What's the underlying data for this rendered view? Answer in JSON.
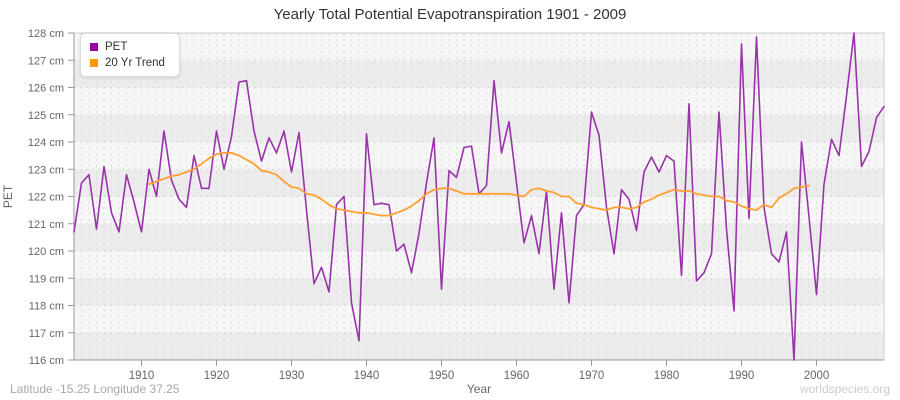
{
  "title": "Yearly Total Potential Evapotranspiration 1901 - 2009",
  "legend": [
    {
      "label": "PET",
      "color": "#9900aa"
    },
    {
      "label": "20 Yr Trend",
      "color": "#ff9900"
    }
  ],
  "y_axis": {
    "label": "PET",
    "unit": "cm",
    "min": 116,
    "max": 128,
    "tick_step": 1
  },
  "x_axis": {
    "label": "Year",
    "min": 1901,
    "max": 2009,
    "ticks": [
      1910,
      1920,
      1930,
      1940,
      1950,
      1960,
      1970,
      1980,
      1990,
      2000
    ]
  },
  "footer": {
    "left": "Latitude -15.25 Longitude 37.25",
    "right": "worldspecies.org"
  },
  "colors": {
    "pet_line": "#9933aa",
    "trend_line": "#ffa030",
    "band_light": "#f6f6f6",
    "band_dark": "#ececec",
    "gridline": "#d9d9d9",
    "axis": "#999999",
    "frame": "#cccccc",
    "tick_text": "#666666",
    "title_text": "#333333"
  },
  "chart_data": {
    "type": "line",
    "title": "Yearly Total Potential Evapotranspiration 1901 - 2009",
    "xlabel": "Year",
    "ylabel": "PET",
    "y_unit": "cm",
    "xlim": [
      1901,
      2009
    ],
    "ylim": [
      116,
      128
    ],
    "grid": true,
    "legend_position": "top-left",
    "series": [
      {
        "name": "PET",
        "color": "#9933aa",
        "x_start": 1901,
        "values": [
          120.7,
          122.5,
          122.8,
          120.8,
          123.1,
          121.4,
          120.7,
          122.8,
          121.8,
          120.7,
          123.0,
          122.0,
          124.4,
          122.6,
          121.9,
          121.6,
          123.5,
          122.3,
          122.3,
          124.4,
          123.0,
          124.2,
          126.2,
          126.25,
          124.4,
          123.3,
          124.15,
          123.6,
          124.4,
          122.9,
          124.35,
          121.5,
          118.8,
          119.4,
          118.5,
          121.7,
          122.0,
          118.1,
          116.7,
          124.3,
          121.7,
          121.75,
          121.7,
          120.0,
          120.25,
          119.2,
          120.65,
          122.5,
          124.15,
          118.6,
          122.95,
          122.7,
          123.8,
          123.85,
          122.1,
          122.4,
          126.25,
          123.6,
          124.75,
          122.5,
          120.3,
          121.3,
          119.9,
          122.2,
          118.6,
          121.4,
          118.1,
          121.3,
          121.7,
          125.1,
          124.25,
          121.6,
          119.9,
          122.25,
          121.9,
          120.75,
          122.9,
          123.45,
          122.9,
          123.5,
          123.3,
          119.1,
          125.4,
          118.9,
          119.2,
          119.9,
          125.1,
          120.8,
          117.8,
          127.6,
          121.2,
          127.85,
          121.6,
          119.9,
          119.6,
          120.7,
          116.0,
          124.0,
          121.25,
          118.4,
          122.45,
          124.1,
          123.5,
          125.7,
          128.0,
          123.1,
          123.65,
          124.9,
          125.3
        ]
      },
      {
        "name": "20 Yr Trend",
        "color": "#ffa030",
        "x_start": 1911,
        "values": [
          122.45,
          122.55,
          122.65,
          122.75,
          122.8,
          122.9,
          123.0,
          123.2,
          123.4,
          123.55,
          123.6,
          123.6,
          123.5,
          123.35,
          123.2,
          122.95,
          122.9,
          122.8,
          122.55,
          122.35,
          122.3,
          122.1,
          122.05,
          121.9,
          121.7,
          121.55,
          121.5,
          121.45,
          121.4,
          121.4,
          121.35,
          121.3,
          121.3,
          121.4,
          121.5,
          121.65,
          121.85,
          122.1,
          122.25,
          122.3,
          122.3,
          122.2,
          122.1,
          122.1,
          122.1,
          122.1,
          122.1,
          122.1,
          122.1,
          122.05,
          122.0,
          122.25,
          122.3,
          122.2,
          122.15,
          122.0,
          122.0,
          121.75,
          121.7,
          121.6,
          121.55,
          121.5,
          121.6,
          121.6,
          121.55,
          121.6,
          121.8,
          121.9,
          122.05,
          122.15,
          122.25,
          122.2,
          122.2,
          122.1,
          122.05,
          122.0,
          122.0,
          121.85,
          121.8,
          121.65,
          121.55,
          121.5,
          121.7,
          121.6,
          121.95,
          122.1,
          122.3,
          122.35,
          122.4
        ]
      }
    ]
  }
}
